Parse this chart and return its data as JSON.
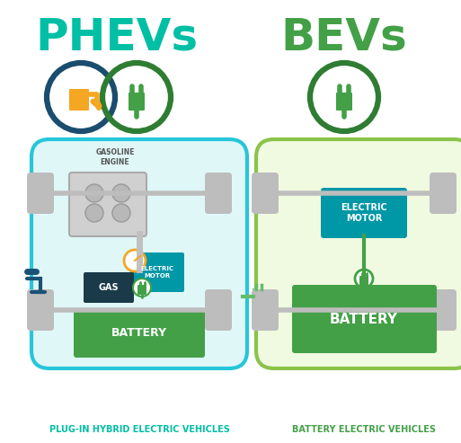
{
  "background_color": "#ffffff",
  "phev_title": "PHEVs",
  "bev_title": "BEVs",
  "phev_subtitle": "PLUG-IN HYBRID ELECTRIC VEHICLES",
  "bev_subtitle": "BATTERY ELECTRIC VEHICLES",
  "teal_color": "#00b0b0",
  "green_color": "#4caf50",
  "dark_green_color": "#2e7d32",
  "bright_green": "#66bb6a",
  "light_green": "#81c784",
  "orange_color": "#f5a623",
  "dark_teal": "#1a5276",
  "blue_color": "#1a7090",
  "title_teal": "#00bfa5",
  "title_green": "#43a047",
  "car_teal_border": "#26c6da",
  "car_green_border": "#8bc34a",
  "wheel_color": "#bdbdbd",
  "body_bg_teal": "#e0f7f7",
  "body_bg_green": "#f0fae0",
  "battery_green": "#43a047",
  "motor_blue": "#0097a7",
  "gas_dark": "#1a3a4a",
  "axle_color": "#bdbdbd",
  "engine_color": "#c0c0c0",
  "circle_dark_blue": "#1a4d6e",
  "circle_dark_green": "#2e7d32",
  "plug_green": "#43a047"
}
